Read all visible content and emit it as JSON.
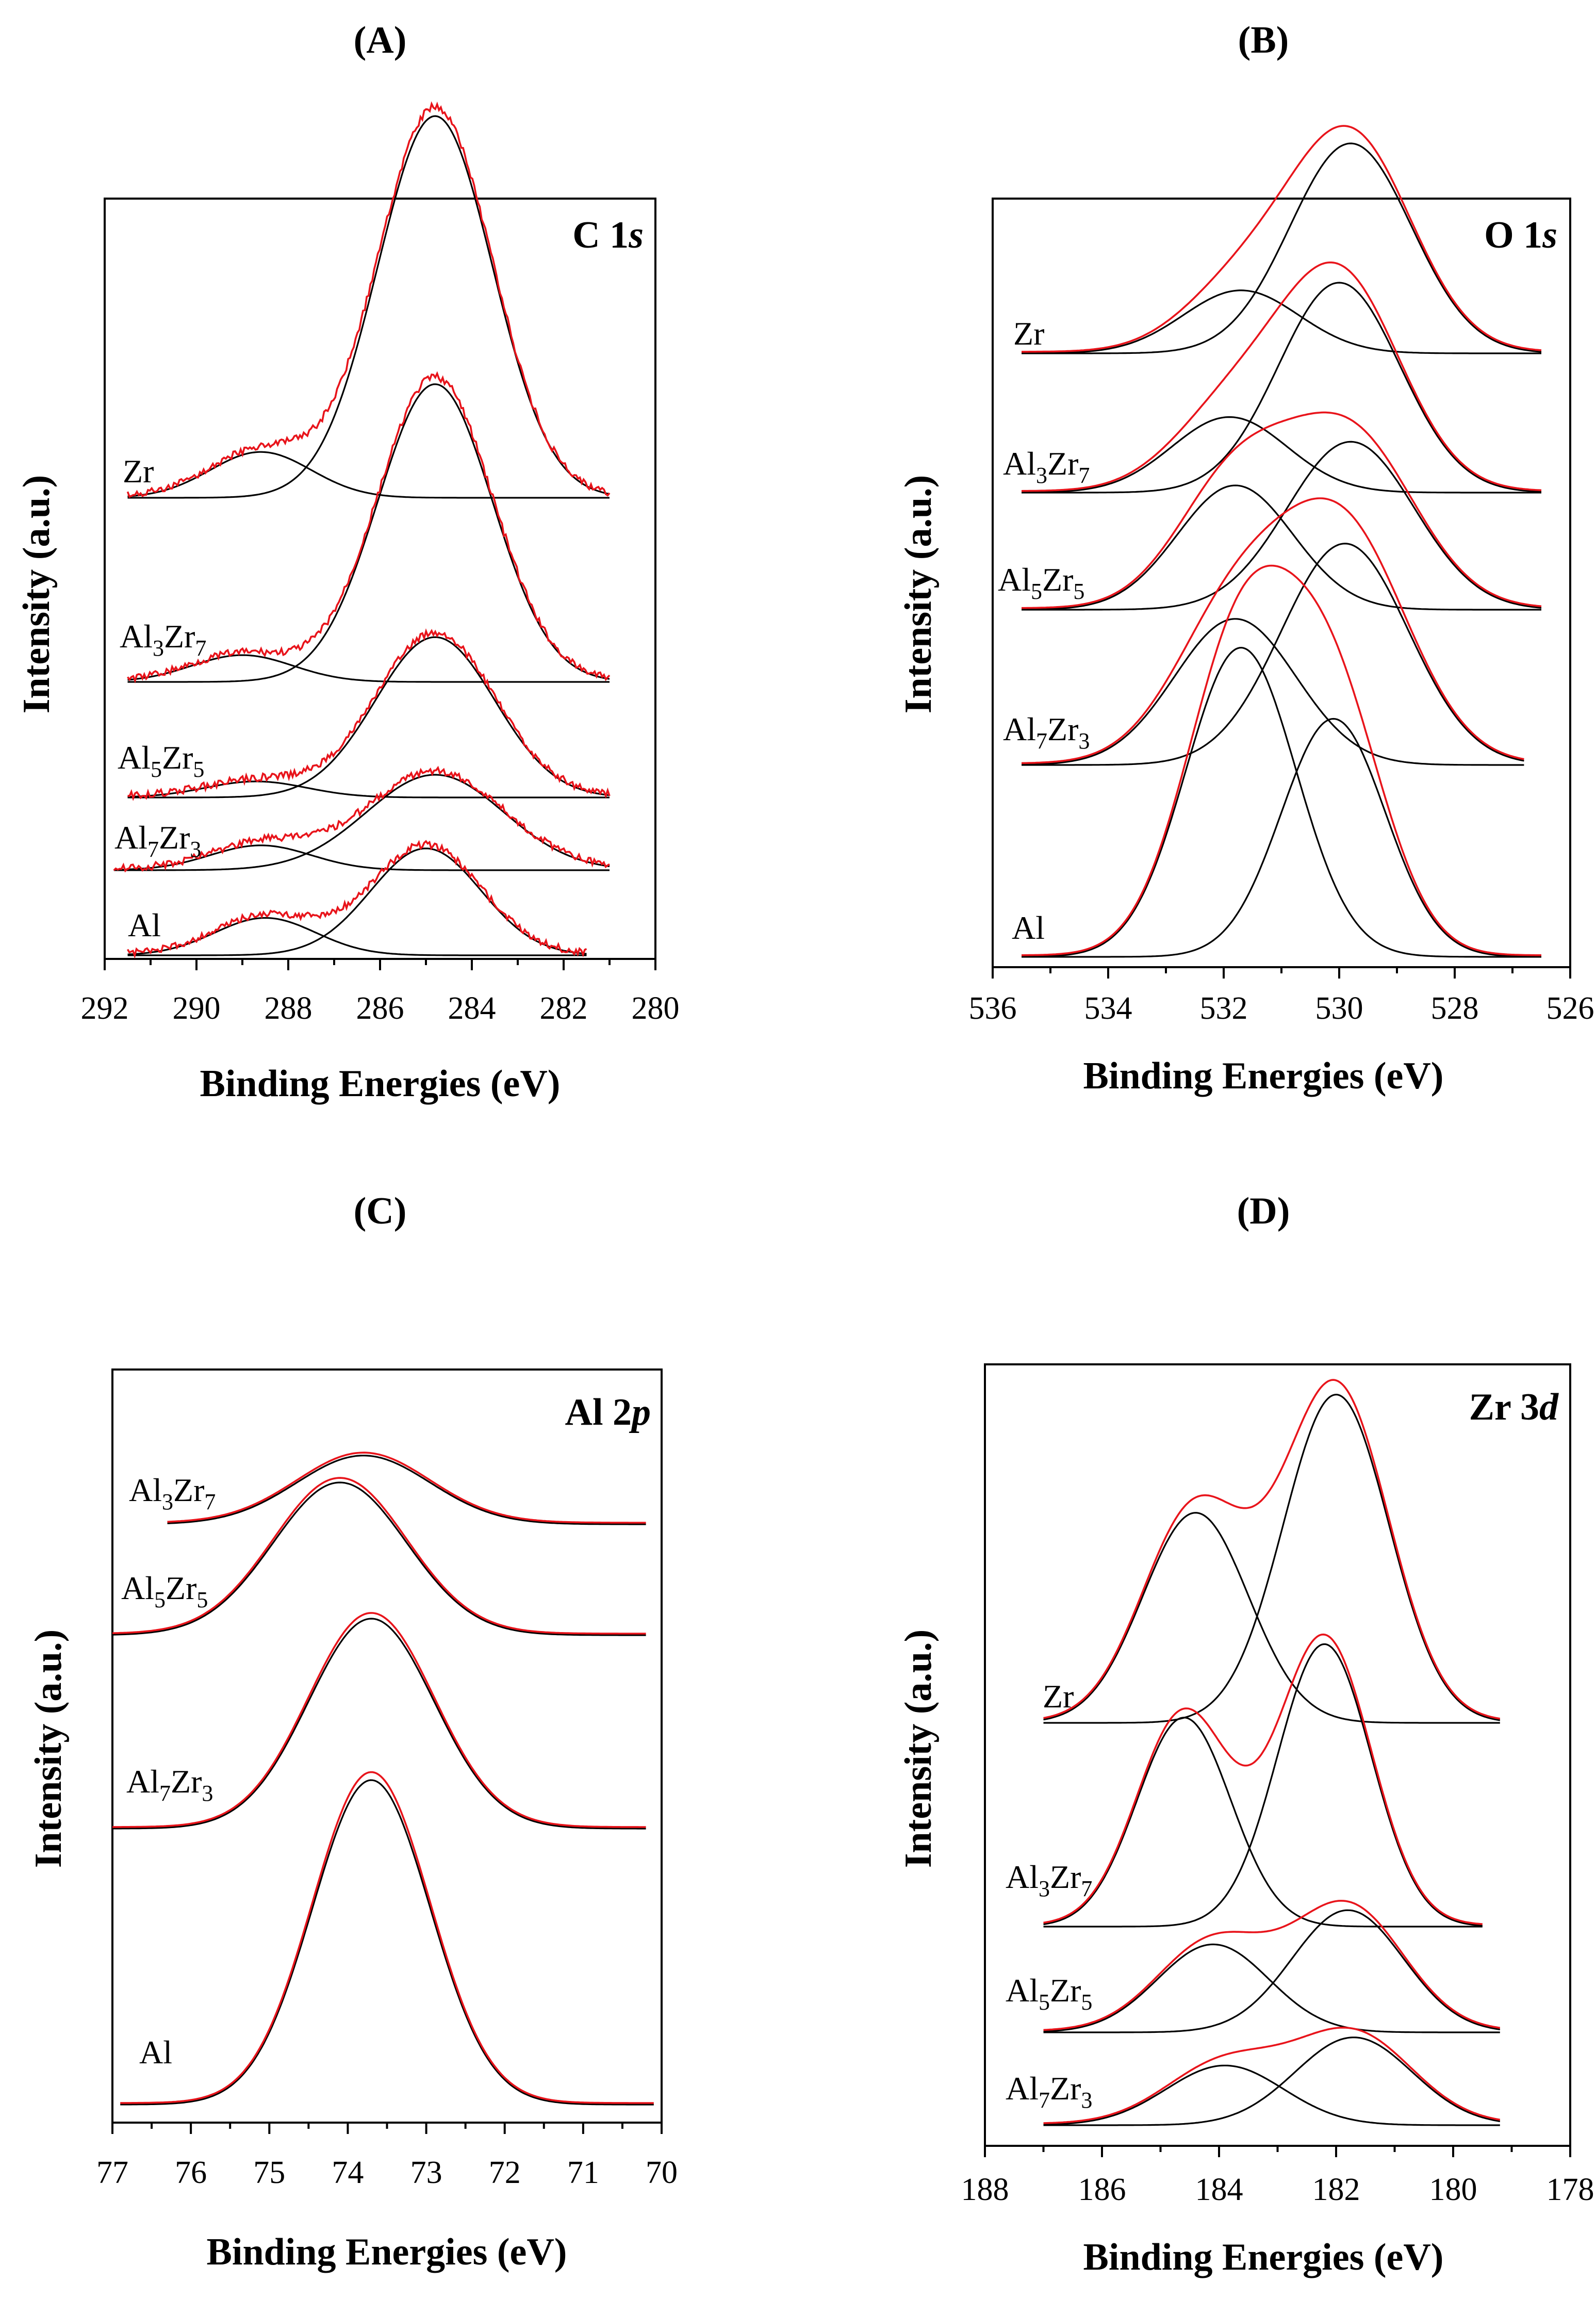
{
  "chart_data": [
    {
      "type": "line",
      "panel": "(A)",
      "spectrum": {
        "main": "C 1",
        "orbital": "s"
      },
      "xlabel": "Binding Energies (eV)",
      "ylabel": "Intensity (a.u.)",
      "xlim": [
        292,
        280
      ],
      "xticks": [
        292,
        290,
        288,
        286,
        284,
        282,
        280
      ],
      "series": [
        {
          "name": "Zr",
          "sub": [],
          "height": 1.0,
          "start": 291.5,
          "end": 281.0,
          "peaks": [
            {
              "center": 288.6,
              "height": 0.12,
              "width": 1.1
            },
            {
              "center": 284.8,
              "height": 1.0,
              "width": 1.25
            }
          ]
        },
        {
          "name": "Al3Zr7",
          "sub": [
            "3",
            "7"
          ],
          "height": 0.78,
          "start": 291.5,
          "end": 281.0,
          "peaks": [
            {
              "center": 289.0,
              "height": 0.09,
              "width": 1.1
            },
            {
              "center": 284.8,
              "height": 1.0,
              "width": 1.25
            }
          ]
        },
        {
          "name": "Al5Zr5",
          "sub": [
            "5",
            "5"
          ],
          "height": 0.42,
          "start": 291.5,
          "end": 281.0,
          "peaks": [
            {
              "center": 288.7,
              "height": 0.1,
              "width": 1.1
            },
            {
              "center": 284.8,
              "height": 1.0,
              "width": 1.3
            }
          ]
        },
        {
          "name": "Al7Zr3",
          "sub": [
            "7",
            "3"
          ],
          "height": 0.25,
          "start": 291.8,
          "end": 281.0,
          "peaks": [
            {
              "center": 288.6,
              "height": 0.26,
              "width": 1.1
            },
            {
              "center": 284.8,
              "height": 1.0,
              "width": 1.5
            }
          ]
        },
        {
          "name": "Al",
          "sub": [],
          "height": 0.28,
          "start": 291.5,
          "end": 281.5,
          "peaks": [
            {
              "center": 288.5,
              "height": 0.35,
              "width": 1.1
            },
            {
              "center": 285.0,
              "height": 1.0,
              "width": 1.2
            }
          ]
        }
      ]
    },
    {
      "type": "line",
      "panel": "(B)",
      "spectrum": {
        "main": "O 1",
        "orbital": "s"
      },
      "xlabel": "Binding Energies (eV)",
      "ylabel": "Intensity (a.u.)",
      "xlim": [
        536,
        526
      ],
      "xticks": [
        536,
        534,
        532,
        530,
        528,
        526
      ],
      "series": [
        {
          "name": "Zr",
          "sub": [],
          "height": 0.55,
          "start": 535.5,
          "end": 526.5,
          "peaks": [
            {
              "center": 531.7,
              "height": 0.3,
              "width": 1.0
            },
            {
              "center": 529.8,
              "height": 1.0,
              "width": 1.05
            }
          ]
        },
        {
          "name": "Al3Zr7",
          "sub": [
            "3",
            "7"
          ],
          "height": 0.55,
          "start": 535.5,
          "end": 526.5,
          "peaks": [
            {
              "center": 531.9,
              "height": 0.36,
              "width": 1.0
            },
            {
              "center": 530.0,
              "height": 1.0,
              "width": 1.05
            }
          ]
        },
        {
          "name": "Al5Zr5",
          "sub": [
            "5",
            "5"
          ],
          "height": 0.44,
          "start": 535.5,
          "end": 526.5,
          "peaks": [
            {
              "center": 531.8,
              "height": 0.74,
              "width": 1.0
            },
            {
              "center": 529.8,
              "height": 1.0,
              "width": 1.1
            }
          ]
        },
        {
          "name": "Al7Zr3",
          "sub": [
            "7",
            "3"
          ],
          "height": 0.58,
          "start": 535.5,
          "end": 526.8,
          "peaks": [
            {
              "center": 531.8,
              "height": 0.66,
              "width": 1.05
            },
            {
              "center": 529.9,
              "height": 1.0,
              "width": 1.1
            }
          ]
        },
        {
          "name": "Al",
          "sub": [],
          "height": 0.81,
          "start": 535.5,
          "end": 526.5,
          "peaks": [
            {
              "center": 531.7,
              "height": 1.0,
              "width": 0.95
            },
            {
              "center": 530.1,
              "height": 0.77,
              "width": 0.9
            }
          ]
        }
      ]
    },
    {
      "type": "line",
      "panel": "(C)",
      "spectrum": {
        "main": "Al 2",
        "orbital": "p"
      },
      "xlabel": "Binding Energies (eV)",
      "ylabel": "Intensity (a.u.)",
      "xlim": [
        77,
        70
      ],
      "xticks": [
        77,
        76,
        75,
        74,
        73,
        72,
        71,
        70
      ],
      "series": [
        {
          "name": "Al3Zr7",
          "sub": [
            "3",
            "7"
          ],
          "height": 0.18,
          "start": 76.3,
          "end": 70.2,
          "peaks": [
            {
              "center": 73.8,
              "height": 1.0,
              "width": 0.85
            }
          ]
        },
        {
          "name": "Al5Zr5",
          "sub": [
            "5",
            "5"
          ],
          "height": 0.4,
          "start": 77.0,
          "end": 70.2,
          "peaks": [
            {
              "center": 74.1,
              "height": 1.0,
              "width": 0.85
            }
          ]
        },
        {
          "name": "Al7Zr3",
          "sub": [
            "7",
            "3"
          ],
          "height": 0.55,
          "start": 77.0,
          "end": 70.2,
          "peaks": [
            {
              "center": 73.7,
              "height": 1.0,
              "width": 0.8
            }
          ]
        },
        {
          "name": "Al",
          "sub": [],
          "height": 0.85,
          "start": 76.9,
          "end": 70.1,
          "peaks": [
            {
              "center": 73.7,
              "height": 1.0,
              "width": 0.75
            }
          ]
        }
      ]
    },
    {
      "type": "line",
      "panel": "(D)",
      "spectrum": {
        "main": "Zr 3",
        "orbital": "d"
      },
      "xlabel": "Binding Energies (eV)",
      "ylabel": "Intensity (a.u.)",
      "xlim": [
        188,
        178
      ],
      "xticks": [
        188,
        186,
        184,
        182,
        180,
        178
      ],
      "series": [
        {
          "name": "Zr",
          "sub": [],
          "height": 0.86,
          "start": 187.0,
          "end": 179.2,
          "peaks": [
            {
              "center": 184.4,
              "height": 0.64,
              "width": 0.9
            },
            {
              "center": 182.0,
              "height": 1.0,
              "width": 0.9
            }
          ]
        },
        {
          "name": "Al3Zr7",
          "sub": [
            "3",
            "7"
          ],
          "height": 0.74,
          "start": 187.0,
          "end": 179.5,
          "peaks": [
            {
              "center": 184.6,
              "height": 0.74,
              "width": 0.8
            },
            {
              "center": 182.2,
              "height": 1.0,
              "width": 0.8
            }
          ]
        },
        {
          "name": "Al5Zr5",
          "sub": [
            "5",
            "5"
          ],
          "height": 0.32,
          "start": 187.0,
          "end": 179.2,
          "peaks": [
            {
              "center": 184.1,
              "height": 0.72,
              "width": 0.95
            },
            {
              "center": 181.8,
              "height": 1.0,
              "width": 0.95
            }
          ]
        },
        {
          "name": "Al7Zr3",
          "sub": [
            "7",
            "3"
          ],
          "height": 0.23,
          "start": 187.0,
          "end": 179.2,
          "peaks": [
            {
              "center": 183.9,
              "height": 0.68,
              "width": 1.0
            },
            {
              "center": 181.7,
              "height": 1.0,
              "width": 1.0
            }
          ]
        }
      ]
    }
  ],
  "colors": {
    "fit": "#000000",
    "experimental": "#e8141b"
  }
}
